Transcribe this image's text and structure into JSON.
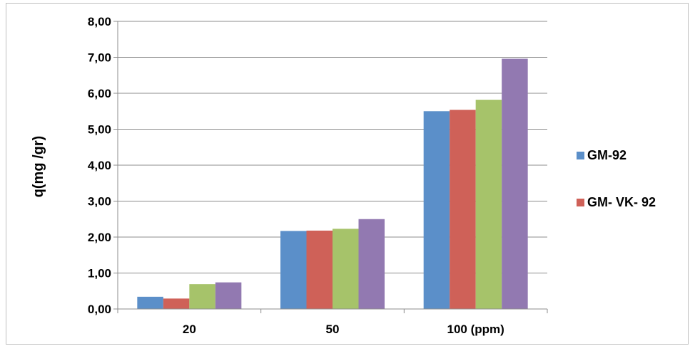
{
  "chart_data": {
    "type": "bar",
    "title": "",
    "xlabel": "",
    "ylabel": "q(mg /gr)",
    "categories": [
      "20",
      "50",
      "100 (ppm)"
    ],
    "ylim": [
      0,
      8
    ],
    "ytick_values": [
      0,
      1,
      2,
      3,
      4,
      5,
      6,
      7,
      8
    ],
    "ytick_labels": [
      "0,00",
      "1,00",
      "2,00",
      "3,00",
      "4,00",
      "5,00",
      "6,00",
      "7,00",
      "8,00"
    ],
    "grid": true,
    "legend_position": "right",
    "series": [
      {
        "name": "GM-92",
        "color": "#5b8fc9",
        "values": [
          0.34,
          2.17,
          5.5
        ]
      },
      {
        "name": "GM- VK- 92",
        "color": "#cf6158",
        "values": [
          0.29,
          2.18,
          5.54
        ]
      },
      {
        "color": "#a6c36a",
        "values": [
          0.69,
          2.23,
          5.82
        ]
      },
      {
        "color": "#9279b1",
        "values": [
          0.74,
          2.5,
          6.96
        ]
      }
    ]
  }
}
